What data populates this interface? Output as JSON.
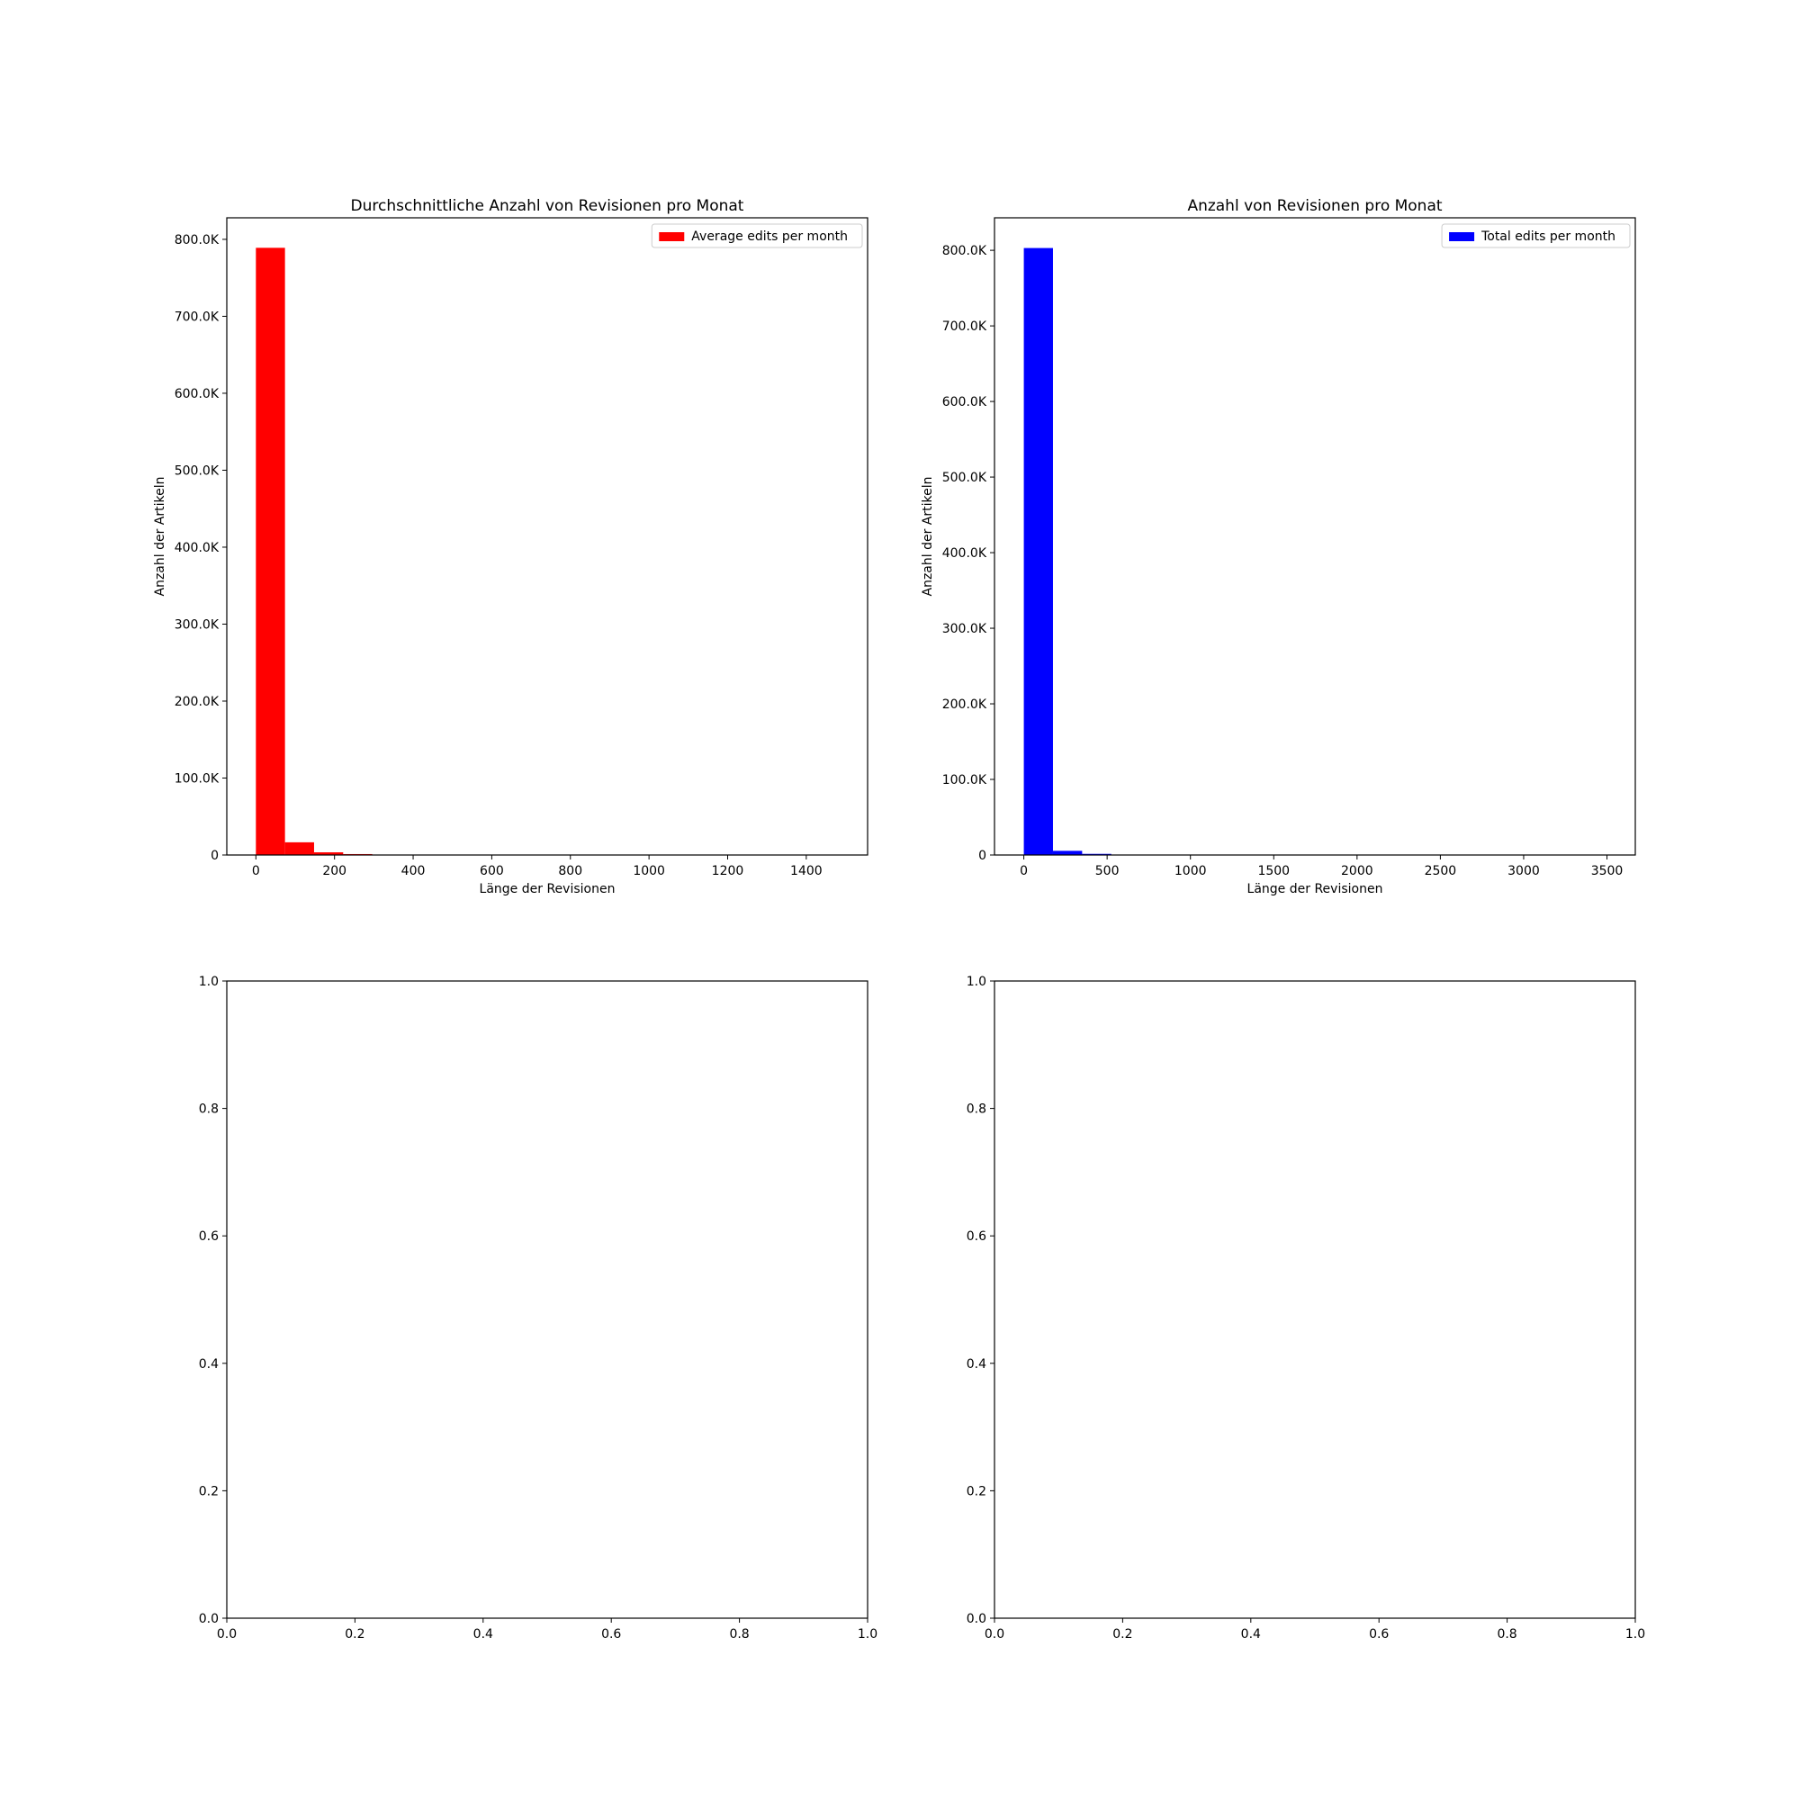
{
  "chart_data": [
    {
      "type": "bar",
      "histogram": true,
      "title": "Durchschnittliche Anzahl von Revisionen pro Monat",
      "xlabel": "Länge der Revisionen",
      "ylabel": "Anzahl der Artikeln",
      "xlim": [
        -74,
        1556
      ],
      "ylim": [
        0,
        828000
      ],
      "xticks": [
        0,
        200,
        400,
        600,
        800,
        1000,
        1200,
        1400
      ],
      "xtick_labels": [
        "0",
        "200",
        "400",
        "600",
        "800",
        "1000",
        "1200",
        "1400"
      ],
      "yticks": [
        0,
        100000,
        200000,
        300000,
        400000,
        500000,
        600000,
        700000,
        800000
      ],
      "ytick_labels": [
        "0",
        "100.0K",
        "200.0K",
        "300.0K",
        "400.0K",
        "500.0K",
        "600.0K",
        "700.0K",
        "800.0K"
      ],
      "bin_width": 74,
      "bins": [
        {
          "x0": 0,
          "x1": 74,
          "value": 789000
        },
        {
          "x0": 74,
          "x1": 148,
          "value": 16500
        },
        {
          "x0": 148,
          "x1": 222,
          "value": 3500
        },
        {
          "x0": 222,
          "x1": 296,
          "value": 1200
        },
        {
          "x0": 296,
          "x1": 370,
          "value": 300
        }
      ],
      "color": "#ff0000",
      "legend": {
        "label": "Average edits per month",
        "location": "upper right"
      },
      "grid": false
    },
    {
      "type": "bar",
      "histogram": true,
      "title": "Anzahl von Revisionen pro Monat",
      "xlabel": "Länge der Revisionen",
      "ylabel": "Anzahl der Artikeln",
      "xlim": [
        -176,
        3670
      ],
      "ylim": [
        0,
        843000
      ],
      "xticks": [
        0,
        500,
        1000,
        1500,
        2000,
        2500,
        3000,
        3500
      ],
      "xtick_labels": [
        "0",
        "500",
        "1000",
        "1500",
        "2000",
        "2500",
        "3000",
        "3500"
      ],
      "yticks": [
        0,
        100000,
        200000,
        300000,
        400000,
        500000,
        600000,
        700000,
        800000
      ],
      "ytick_labels": [
        "0",
        "100.0K",
        "200.0K",
        "300.0K",
        "400.0K",
        "500.0K",
        "600.0K",
        "700.0K",
        "800.0K"
      ],
      "bin_width": 175,
      "bins": [
        {
          "x0": 0,
          "x1": 175,
          "value": 803000
        },
        {
          "x0": 175,
          "x1": 350,
          "value": 5500
        },
        {
          "x0": 350,
          "x1": 525,
          "value": 1500
        }
      ],
      "color": "#0000ff",
      "legend": {
        "label": "Total edits per month",
        "location": "upper right"
      },
      "grid": false
    },
    {
      "type": "bar",
      "empty": true,
      "title": "",
      "xlabel": "",
      "ylabel": "",
      "xlim": [
        0,
        1
      ],
      "ylim": [
        0,
        1
      ],
      "xticks": [
        0,
        0.2,
        0.4,
        0.6,
        0.8,
        1.0
      ],
      "xtick_labels": [
        "0.0",
        "0.2",
        "0.4",
        "0.6",
        "0.8",
        "1.0"
      ],
      "yticks": [
        0,
        0.2,
        0.4,
        0.6,
        0.8,
        1.0
      ],
      "ytick_labels": [
        "0.0",
        "0.2",
        "0.4",
        "0.6",
        "0.8",
        "1.0"
      ],
      "bins": [],
      "grid": false
    },
    {
      "type": "bar",
      "empty": true,
      "title": "",
      "xlabel": "",
      "ylabel": "",
      "xlim": [
        0,
        1
      ],
      "ylim": [
        0,
        1
      ],
      "xticks": [
        0,
        0.2,
        0.4,
        0.6,
        0.8,
        1.0
      ],
      "xtick_labels": [
        "0.0",
        "0.2",
        "0.4",
        "0.6",
        "0.8",
        "1.0"
      ],
      "yticks": [
        0,
        0.2,
        0.4,
        0.6,
        0.8,
        1.0
      ],
      "ytick_labels": [
        "0.0",
        "0.2",
        "0.4",
        "0.6",
        "0.8",
        "1.0"
      ],
      "bins": [],
      "grid": false
    }
  ]
}
